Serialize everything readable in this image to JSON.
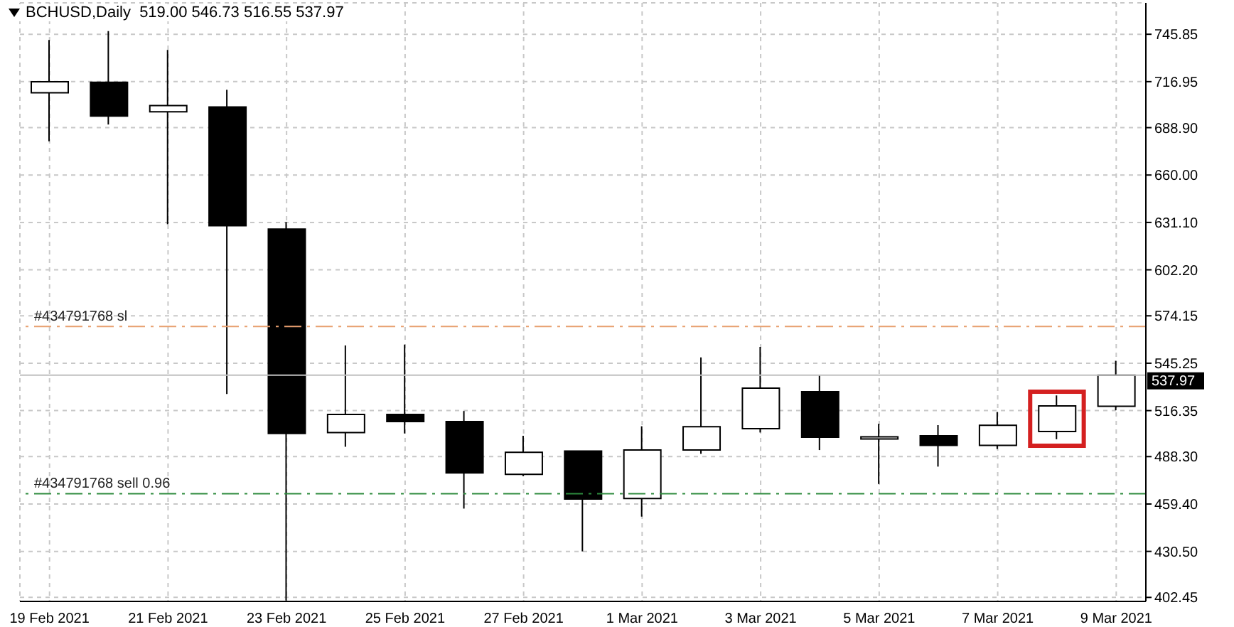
{
  "chart_data": {
    "type": "candlestick",
    "title": "BCHUSD,Daily  519.00 546.73 516.55 537.97",
    "categories": [
      "19 Feb 2021",
      null,
      "21 Feb 2021",
      null,
      "23 Feb 2021",
      null,
      "25 Feb 2021",
      null,
      "27 Feb 2021",
      null,
      "1 Mar 2021",
      null,
      "3 Mar 2021",
      null,
      "5 Mar 2021",
      null,
      "7 Mar 2021",
      null,
      "9 Mar 2021"
    ],
    "ohlc": [
      [
        710.2,
        742.4,
        680.6,
        716.9
      ],
      [
        716.6,
        747.8,
        690.8,
        696.0
      ],
      [
        698.6,
        736.3,
        630.0,
        702.4
      ],
      [
        701.5,
        712.0,
        526.5,
        629.1
      ],
      [
        627.0,
        631.4,
        400.5,
        502.4
      ],
      [
        503.0,
        556.1,
        494.3,
        514.0
      ],
      [
        514.0,
        556.6,
        502.4,
        509.7
      ],
      [
        509.7,
        516.1,
        456.6,
        478.4
      ],
      [
        477.5,
        501.0,
        476.4,
        490.9
      ],
      [
        491.7,
        491.7,
        430.5,
        462.4
      ],
      [
        462.7,
        506.8,
        451.7,
        492.3
      ],
      [
        492.3,
        548.8,
        490.0,
        506.5
      ],
      [
        505.3,
        555.2,
        503.0,
        530.0
      ],
      [
        527.9,
        537.8,
        492.3,
        500.1
      ],
      [
        499.0,
        508.3,
        471.6,
        499.5
      ],
      [
        501.0,
        507.5,
        482.2,
        495.2
      ],
      [
        495.2,
        515.5,
        492.9,
        507.4
      ],
      [
        503.6,
        525.6,
        498.9,
        519.2
      ],
      [
        519.0,
        546.73,
        516.55,
        537.97
      ]
    ],
    "ylim": [
      400,
      765
    ],
    "yticks": [
      {
        "value": 402.45,
        "label": "402.45"
      },
      {
        "value": 430.5,
        "label": "430.50"
      },
      {
        "value": 459.4,
        "label": "459.40"
      },
      {
        "value": 488.3,
        "label": "488.30"
      },
      {
        "value": 516.35,
        "label": "516.35"
      },
      {
        "value": 545.25,
        "label": "545.25"
      },
      {
        "value": 574.15,
        "label": "574.15"
      },
      {
        "value": 602.2,
        "label": "602.20"
      },
      {
        "value": 631.1,
        "label": "631.10"
      },
      {
        "value": 660.0,
        "label": "660.00"
      },
      {
        "value": 688.9,
        "label": "688.90"
      },
      {
        "value": 716.95,
        "label": "716.95"
      },
      {
        "value": 745.85,
        "label": "745.85"
      }
    ],
    "ref_lines": [
      {
        "axis": "y",
        "value": 567.6,
        "label": "#434791768 sl",
        "color": "#e8a070",
        "line_style": "dashed"
      },
      {
        "axis": "y",
        "value": 465.7,
        "label": "#434791768 sell 0.96",
        "color": "#2e8b3e",
        "line_style": "dashed"
      },
      {
        "axis": "y",
        "value": 537.97,
        "label": "537.97",
        "color": "#c0c0c0",
        "line_style": "solid"
      }
    ],
    "grid": true
  }
}
